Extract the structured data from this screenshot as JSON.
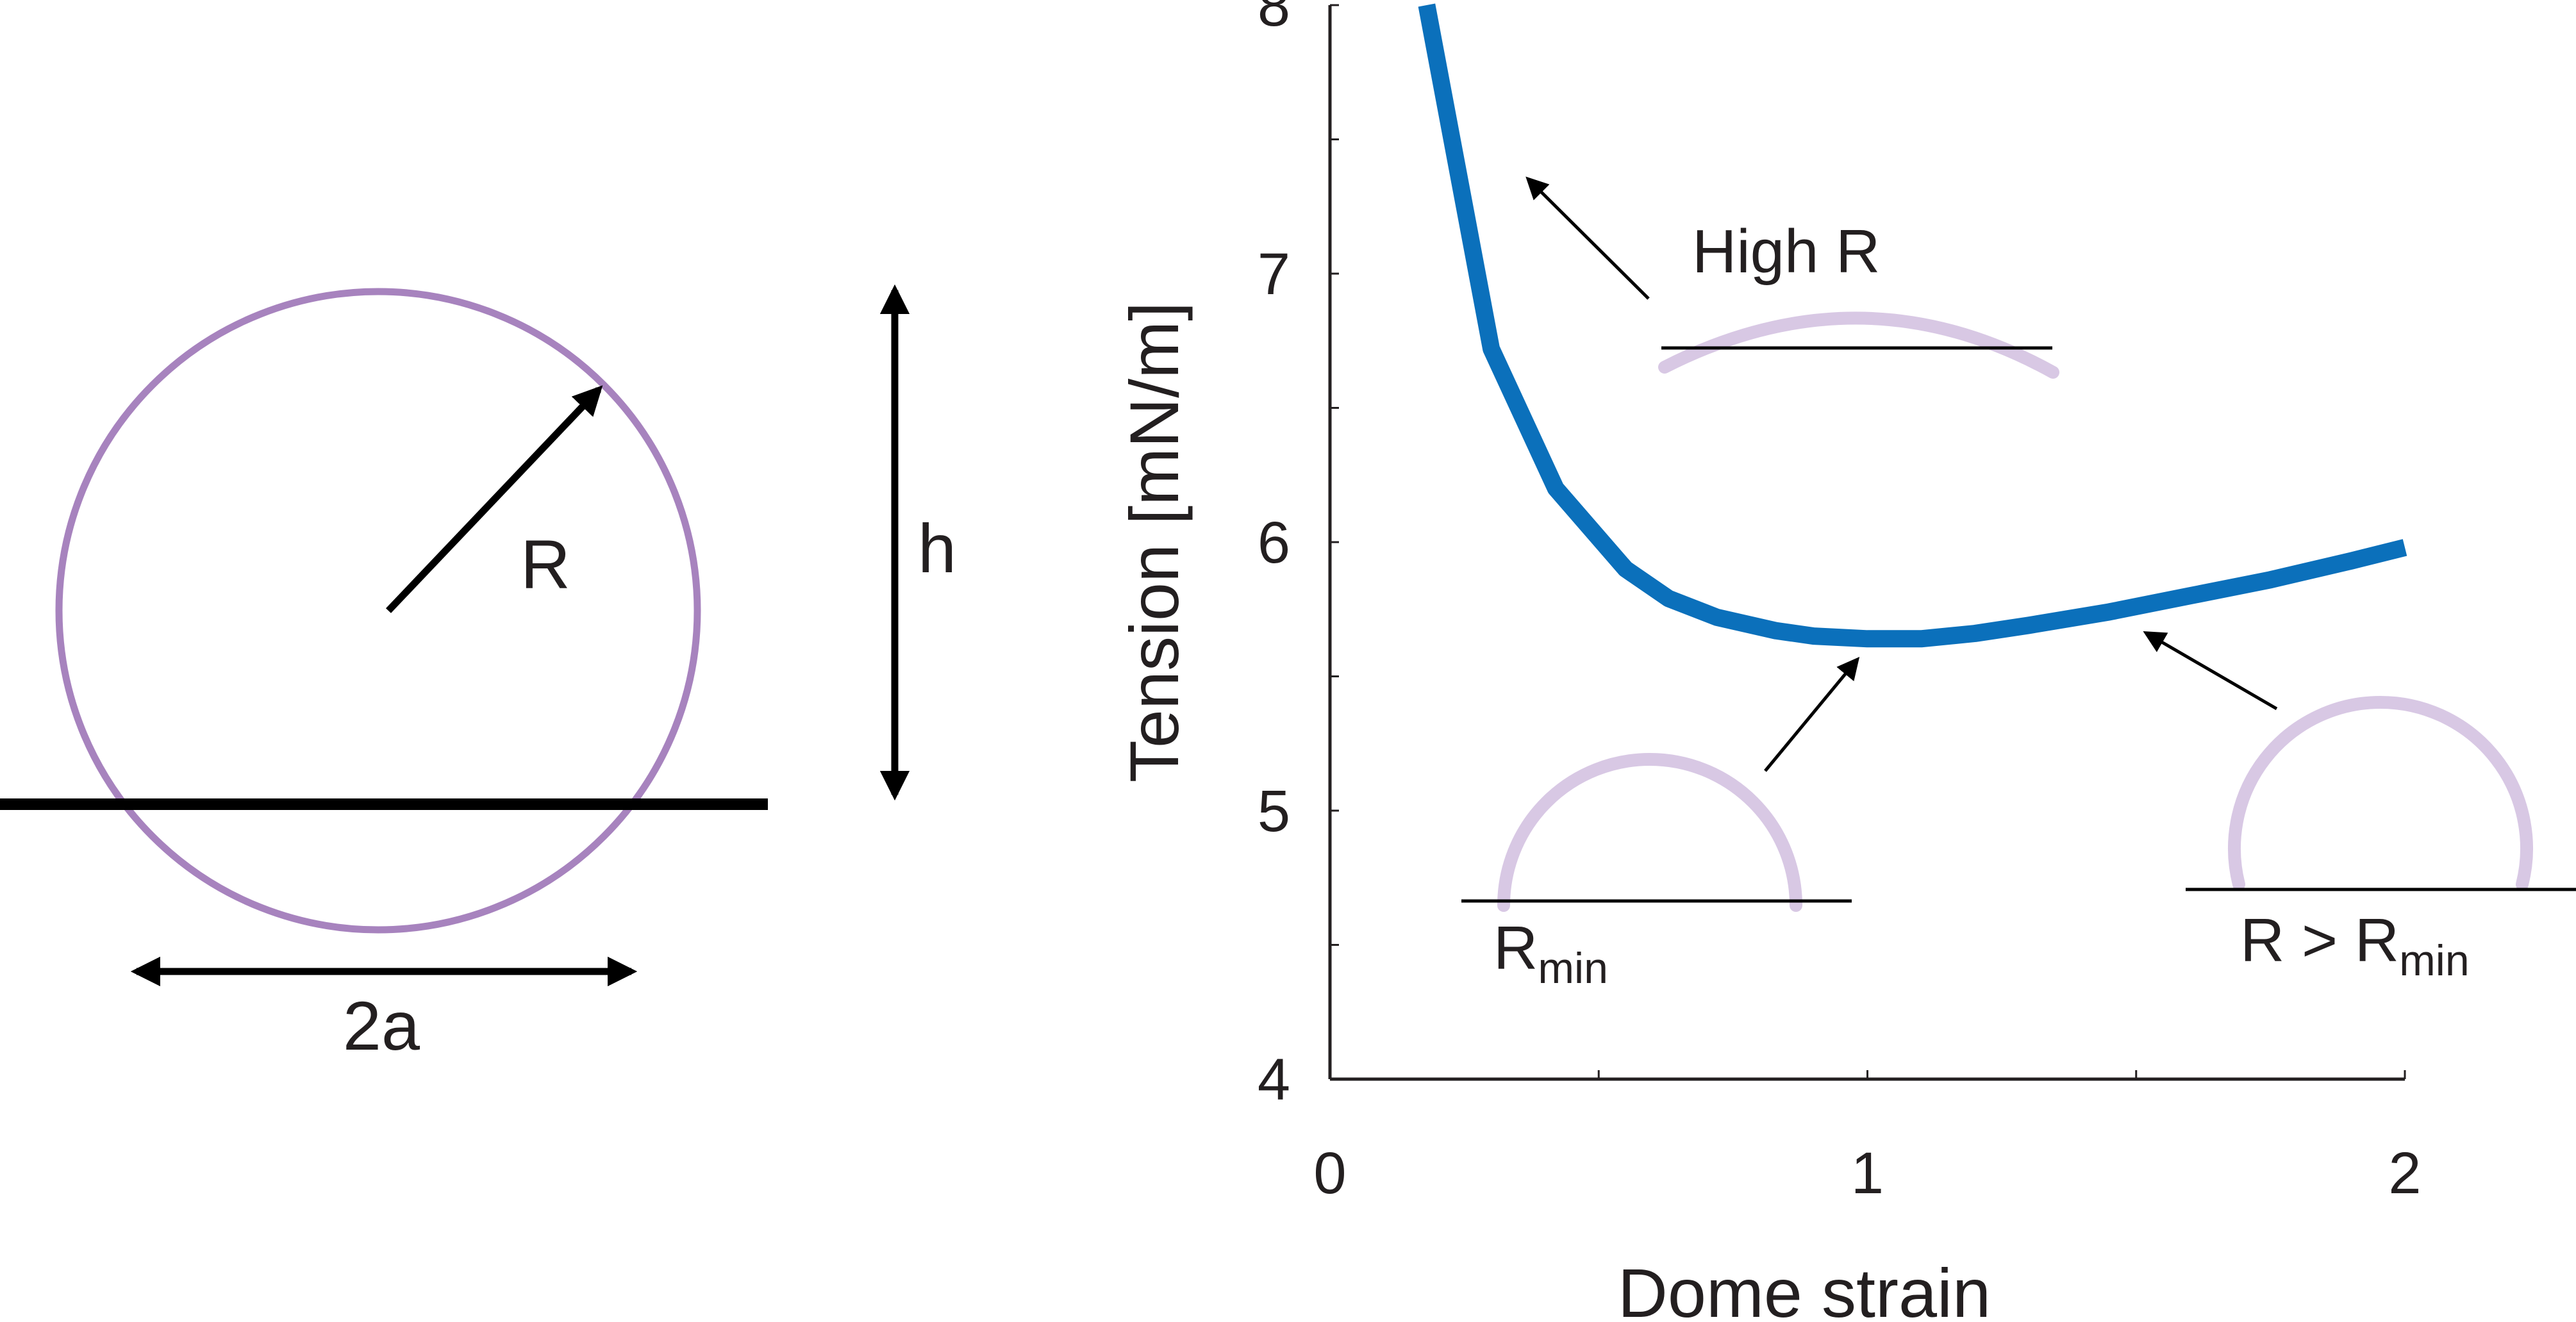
{
  "diagram": {
    "radius_label": "R",
    "height_label": "h",
    "base_label": "2a",
    "circle_color": "#a783be",
    "line_color": "#000000"
  },
  "chart_data": {
    "type": "line",
    "xlabel": "Dome strain",
    "ylabel": "Tension [mN/m]",
    "xlim": [
      0,
      2
    ],
    "ylim": [
      4,
      8
    ],
    "xticks": [
      0,
      1,
      2
    ],
    "yticks": [
      4,
      5,
      6,
      7,
      8
    ],
    "grid": false,
    "series": [
      {
        "color": "#0b70bb",
        "x": [
          0.18,
          0.3,
          0.42,
          0.55,
          0.63,
          0.72,
          0.83,
          0.9,
          1.0,
          1.1,
          1.2,
          1.3,
          1.45,
          1.6,
          1.75,
          1.9,
          2.0
        ],
        "y": [
          8.0,
          6.72,
          6.2,
          5.9,
          5.79,
          5.72,
          5.67,
          5.65,
          5.64,
          5.64,
          5.66,
          5.69,
          5.74,
          5.8,
          5.86,
          5.93,
          5.98
        ]
      }
    ],
    "annotations": [
      {
        "label": "High R",
        "label_sub": "",
        "inset": "shallow-cap",
        "arrow_to": [
          0.37,
          7.35
        ]
      },
      {
        "label": "R",
        "label_sub": "min",
        "inset": "hemisphere",
        "arrow_to": [
          0.98,
          5.56
        ]
      },
      {
        "label": "R > R",
        "label_sub": "min",
        "inset": "large-dome",
        "arrow_to": [
          1.52,
          5.66
        ]
      }
    ],
    "inset_color": "#d8c8e4",
    "inset_baseline_color": "#000000"
  }
}
